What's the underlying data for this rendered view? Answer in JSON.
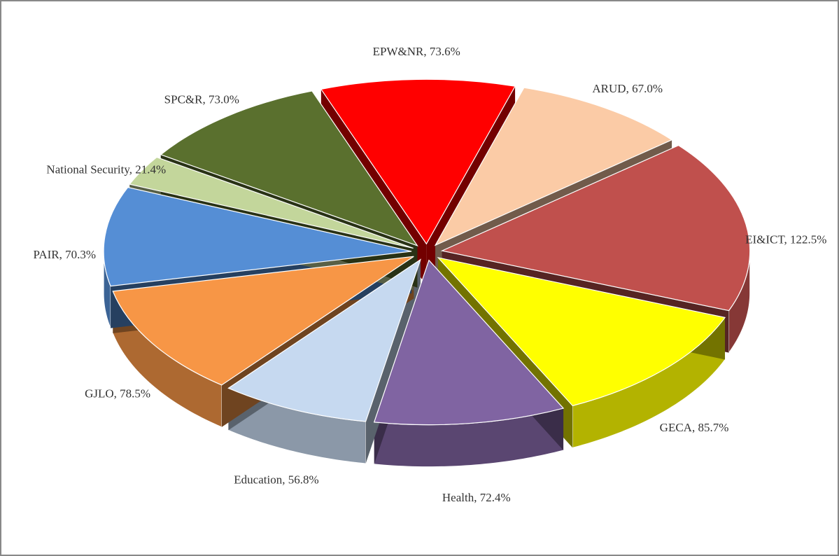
{
  "chart_data": {
    "type": "pie",
    "three_d": true,
    "exploded": true,
    "values": [
      73.6,
      67.0,
      122.5,
      85.7,
      72.4,
      56.8,
      78.5,
      70.3,
      21.4,
      73.0
    ],
    "value_labels": [
      "EPW&NR, 73.6%",
      "ARUD, 67.0%",
      "EI&ICT, 122.5%",
      "GECA, 85.7%",
      "Health, 72.4%",
      "Education, 56.8%",
      "GJLO, 78.5%",
      "PAIR, 70.3%",
      "National Security, 21.4%",
      "SPC&R, 73.0%"
    ],
    "colors": [
      "#ff0000",
      "#fbcba6",
      "#c0504d",
      "#ffff00",
      "#8064a2",
      "#c6d9f0",
      "#f79646",
      "#558ed5",
      "#c3d69b",
      "#5a702e"
    ]
  }
}
